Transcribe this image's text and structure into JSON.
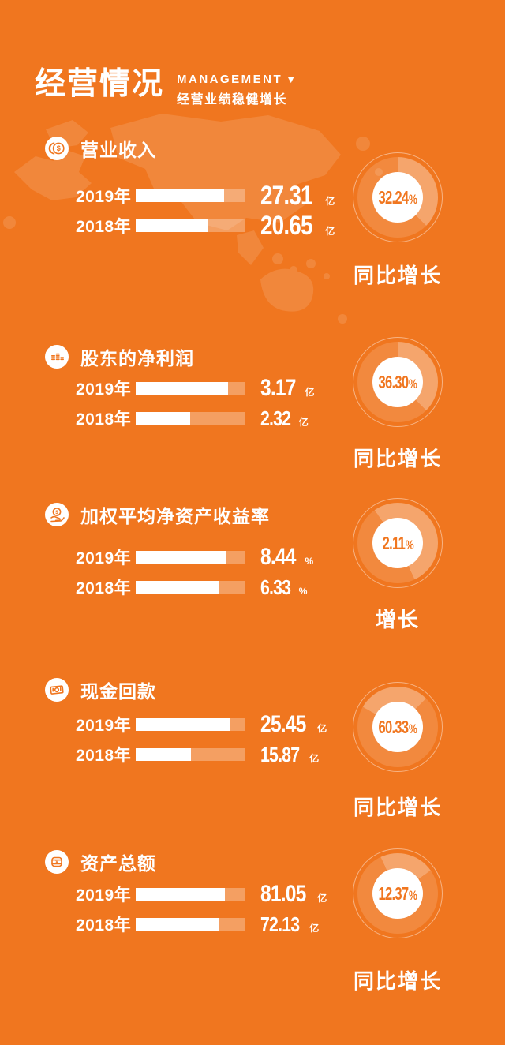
{
  "colors": {
    "background": "#F0761F",
    "text": "#FFFFFF",
    "accent_on_white": "#F0761F",
    "bar_track": "rgba(255,255,255,0.30)",
    "bar_fill": "#FFFFFF"
  },
  "header": {
    "title": "经营情况",
    "subtitle_en": "MANAGEMENT",
    "triangle": "▼",
    "subtitle_cn": "经营业绩稳健增长"
  },
  "metrics": [
    {
      "icon": "coins-icon",
      "title": "营业收入",
      "rows": [
        {
          "year": "2019年",
          "value": "27.31",
          "unit": "亿",
          "fill_pct": 81
        },
        {
          "year": "2018年",
          "value": "20.65",
          "unit": "亿",
          "fill_pct": 67
        }
      ],
      "growth": {
        "value": "32.24",
        "unit": "%",
        "label": "同比增长",
        "wedge": {
          "start": 0,
          "sweep": 135
        }
      }
    },
    {
      "icon": "coin-stacks-icon",
      "title": "股东的净利润",
      "rows": [
        {
          "year": "2019年",
          "value": "3.17",
          "unit": "亿",
          "fill_pct": 85
        },
        {
          "year": "2018年",
          "value": "2.32",
          "unit": "亿",
          "fill_pct": 50
        }
      ],
      "growth": {
        "value": "36.30",
        "unit": "%",
        "label": "同比增长",
        "wedge": {
          "start": 0,
          "sweep": 135
        }
      }
    },
    {
      "icon": "hand-coin-icon",
      "title": "加权平均净资产收益率",
      "rows": [
        {
          "year": "2019年",
          "value": "8.44",
          "unit": "%",
          "fill_pct": 83
        },
        {
          "year": "2018年",
          "value": "6.33",
          "unit": "%",
          "fill_pct": 76
        }
      ],
      "growth": {
        "value": "2.11",
        "unit": "%",
        "label": "增长",
        "wedge": {
          "start": -35,
          "sweep": 190
        }
      }
    },
    {
      "icon": "banknote-icon",
      "title": "现金回款",
      "rows": [
        {
          "year": "2019年",
          "value": "25.45",
          "unit": "亿",
          "fill_pct": 87
        },
        {
          "year": "2018年",
          "value": "15.87",
          "unit": "亿",
          "fill_pct": 51
        }
      ],
      "growth": {
        "value": "60.33",
        "unit": "%",
        "label": "同比增长",
        "wedge": {
          "start": -60,
          "sweep": 105
        }
      }
    },
    {
      "icon": "money-pot-icon",
      "title": "资产总额",
      "rows": [
        {
          "year": "2019年",
          "value": "81.05",
          "unit": "亿",
          "fill_pct": 82
        },
        {
          "year": "2018年",
          "value": "72.13",
          "unit": "亿",
          "fill_pct": 76
        }
      ],
      "growth": {
        "value": "12.37",
        "unit": "%",
        "label": "同比增长",
        "wedge": {
          "start": -25,
          "sweep": 80
        }
      }
    }
  ],
  "chart_data": [
    {
      "type": "bar",
      "title": "营业收入",
      "categories": [
        "2019年",
        "2018年"
      ],
      "values": [
        27.31,
        20.65
      ],
      "unit": "亿",
      "growth": "32.24%",
      "growth_label": "同比增长",
      "orientation": "horizontal"
    },
    {
      "type": "bar",
      "title": "股东的净利润",
      "categories": [
        "2019年",
        "2018年"
      ],
      "values": [
        3.17,
        2.32
      ],
      "unit": "亿",
      "growth": "36.30%",
      "growth_label": "同比增长",
      "orientation": "horizontal"
    },
    {
      "type": "bar",
      "title": "加权平均净资产收益率",
      "categories": [
        "2019年",
        "2018年"
      ],
      "values": [
        8.44,
        6.33
      ],
      "unit": "%",
      "growth": "2.11%",
      "growth_label": "增长",
      "orientation": "horizontal"
    },
    {
      "type": "bar",
      "title": "现金回款",
      "categories": [
        "2019年",
        "2018年"
      ],
      "values": [
        25.45,
        15.87
      ],
      "unit": "亿",
      "growth": "60.33%",
      "growth_label": "同比增长",
      "orientation": "horizontal"
    },
    {
      "type": "bar",
      "title": "资产总额",
      "categories": [
        "2019年",
        "2018年"
      ],
      "values": [
        81.05,
        72.13
      ],
      "unit": "亿",
      "growth": "12.37%",
      "growth_label": "同比增长",
      "orientation": "horizontal"
    }
  ]
}
